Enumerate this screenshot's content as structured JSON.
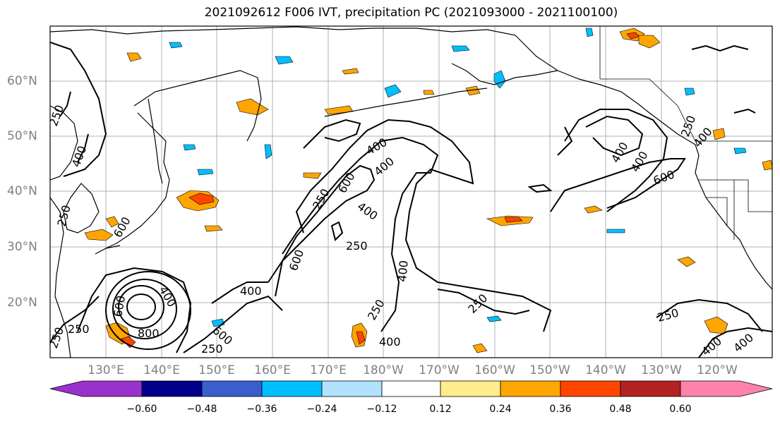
{
  "title": "2021092612 F006 IVT, precipitation PC (2021093000 - 2021100100)",
  "lat_labels": [
    "60°N",
    "50°N",
    "40°N",
    "30°N",
    "20°N"
  ],
  "lon_labels": [
    "130°E",
    "140°E",
    "150°E",
    "160°E",
    "170°E",
    "180°W",
    "170°W",
    "160°W",
    "150°W",
    "140°W",
    "130°W",
    "120°W"
  ],
  "contour_labels": [
    "250",
    "400",
    "250",
    "250",
    "400",
    "600",
    "400",
    "800",
    "600",
    "250",
    "400",
    "250",
    "400",
    "600",
    "250",
    "400",
    "250",
    "400",
    "600",
    "400",
    "400",
    "600",
    "400",
    "250",
    "400",
    "400",
    "600",
    "250",
    "250",
    "400",
    "250"
  ],
  "colorbar": {
    "ticks": [
      "−0.60",
      "−0.48",
      "−0.36",
      "−0.24",
      "−0.12",
      "0.12",
      "0.24",
      "0.36",
      "0.48",
      "0.60"
    ],
    "colors": [
      "#9932CC",
      "#00008B",
      "#3A5FCD",
      "#00BFFF",
      "#B0E2FF",
      "#FFFFFF",
      "#FFEC8B",
      "#FFA500",
      "#FF4500",
      "#B22222",
      "#FF82AB"
    ]
  }
}
